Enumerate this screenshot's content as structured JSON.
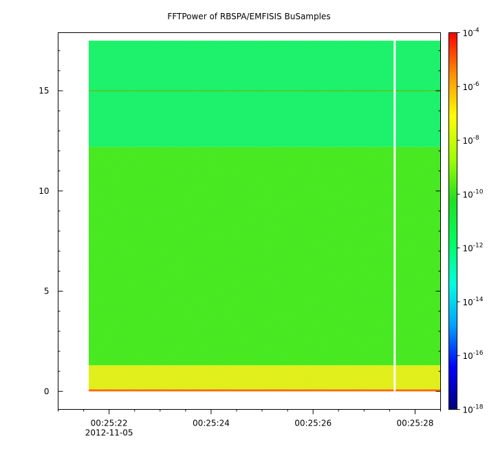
{
  "chart_data": {
    "type": "heatmap",
    "title": "FFTPower of RBSPA/EMFISIS  BuSamples",
    "xlabel": "",
    "ylabel": "",
    "x_ticks": [
      "00:25:22",
      "00:25:24",
      "00:25:26",
      "00:25:28"
    ],
    "x_date_label": "2012-11-05",
    "x_range": [
      "00:25:21.0",
      "00:25:28.5"
    ],
    "data_x_range": [
      "00:25:21.6",
      "00:25:28.5"
    ],
    "data_gap": "00:25:27.6",
    "y_ticks": [
      0,
      5,
      10,
      15
    ],
    "ylim": [
      -0.9,
      17.9
    ],
    "data_y_range": [
      0,
      17.5
    ],
    "colorbar": {
      "scale": "log",
      "range": [
        1e-18,
        0.0001
      ],
      "labels": [
        {
          "base": "10",
          "exp": "-4",
          "value": 0.0001
        },
        {
          "base": "10",
          "exp": "-6",
          "value": 1e-06
        },
        {
          "base": "10",
          "exp": "-8",
          "value": 1e-08
        },
        {
          "base": "10",
          "exp": "-10",
          "value": 1e-10
        },
        {
          "base": "10",
          "exp": "-12",
          "value": 1e-12
        },
        {
          "base": "10",
          "exp": "-14",
          "value": 1e-14
        },
        {
          "base": "10",
          "exp": "-16",
          "value": 1e-16
        },
        {
          "base": "10",
          "exp": "-18",
          "value": 1e-18
        }
      ],
      "colormap": [
        "#00007f",
        "#0000ff",
        "#00a0ff",
        "#00ffe0",
        "#00ff60",
        "#20e020",
        "#a0ff00",
        "#ffff00",
        "#ff9000",
        "#ff0000"
      ]
    },
    "bands": [
      {
        "y_from": 12.2,
        "y_to": 17.5,
        "level": "~1e-12",
        "color": "#1bf36a"
      },
      {
        "y_from": 1.3,
        "y_to": 12.2,
        "level": "~1e-10",
        "color": "#47ea1f"
      },
      {
        "y_from": 0.1,
        "y_to": 1.3,
        "level": "~1e-8",
        "color": "#e2f018"
      },
      {
        "y_from": 0,
        "y_to": 0.1,
        "level": "~1e-6",
        "color": "#ff6a00"
      }
    ],
    "line_15": {
      "y": 15,
      "color": "#4ccf2a"
    }
  }
}
